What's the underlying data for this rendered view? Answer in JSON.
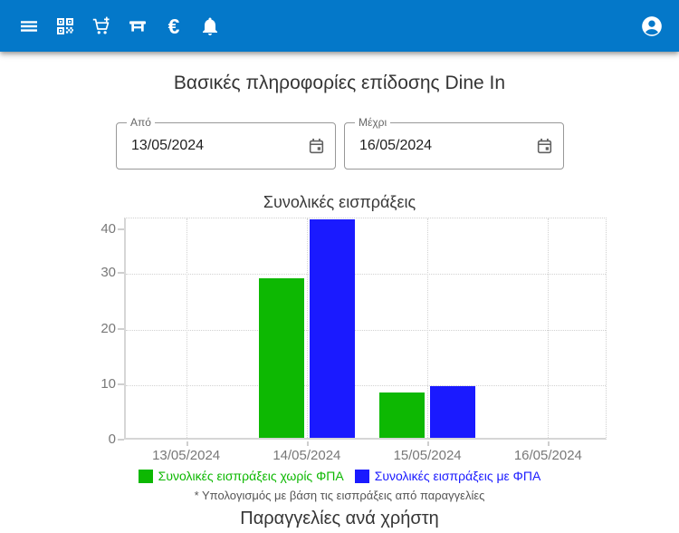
{
  "appbar": {
    "color": "#0478c9",
    "icons": [
      {
        "name": "menu-icon"
      },
      {
        "name": "qr-code-icon"
      },
      {
        "name": "add-cart-icon"
      },
      {
        "name": "table-icon"
      },
      {
        "name": "euro-icon",
        "glyph": "€"
      },
      {
        "name": "bell-icon"
      },
      {
        "name": "account-circle-icon"
      }
    ]
  },
  "header": {
    "title": "Βασικές πληροφορίες επίδοσης Dine In"
  },
  "filters": {
    "from": {
      "label": "Από",
      "value": "13/05/2024"
    },
    "to": {
      "label": "Μέχρι",
      "value": "16/05/2024"
    }
  },
  "chart_data": {
    "type": "bar",
    "title": "Συνολικές εισπράξεις",
    "categories": [
      "13/05/2024",
      "14/05/2024",
      "15/05/2024",
      "16/05/2024"
    ],
    "series": [
      {
        "name": "Συνολικές εισπράξεις χωρίς ΦΠΑ",
        "color": "#0db802",
        "values": [
          0,
          29,
          8.3,
          0
        ]
      },
      {
        "name": "Συνολικές εισπράξεις με ΦΠΑ",
        "color": "#1a1aff",
        "values": [
          0,
          39.6,
          9.4,
          0
        ]
      }
    ],
    "y_ticks": [
      0,
      10,
      20,
      30,
      40
    ],
    "ylim": [
      0,
      40
    ],
    "xlabel": "",
    "ylabel": "",
    "grid": "dotted",
    "legend_position": "bottom",
    "note": "* Υπολογισμός με βάση τις εισπράξεις από παραγγελίες"
  },
  "sections": {
    "orders_title": "Παραγγελίες ανά χρήστη"
  }
}
